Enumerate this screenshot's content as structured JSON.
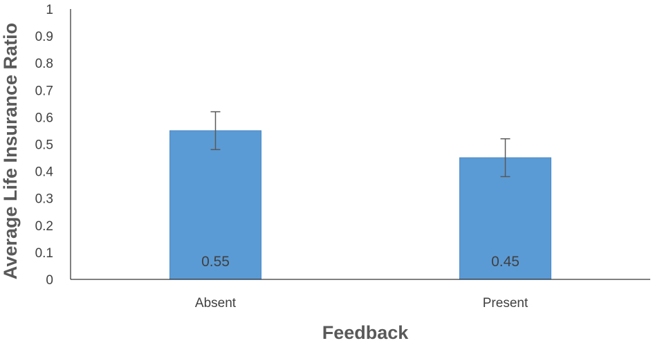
{
  "chart_data": {
    "type": "bar",
    "title": "",
    "xlabel": "Feedback",
    "ylabel": "Average Life Insurance Ratio",
    "categories": [
      "Absent",
      "Present"
    ],
    "values": [
      0.55,
      0.45
    ],
    "error_upper": [
      0.62,
      0.52
    ],
    "error_lower": [
      0.48,
      0.38
    ],
    "data_labels": [
      "0.55",
      "0.45"
    ],
    "ylim": [
      0,
      1
    ],
    "yticks": [
      0,
      0.1,
      0.2,
      0.3,
      0.4,
      0.5,
      0.6,
      0.7,
      0.8,
      0.9,
      1
    ],
    "ytick_labels": [
      "0",
      "0.1",
      "0.2",
      "0.3",
      "0.4",
      "0.5",
      "0.6",
      "0.7",
      "0.8",
      "0.9",
      "1"
    ],
    "grid": false,
    "legend": "none",
    "colors": {
      "bar_fill": "#5b9bd5",
      "bar_stroke": "#4a8ac4",
      "error_bar": "#595959",
      "axis": "#000000"
    }
  }
}
